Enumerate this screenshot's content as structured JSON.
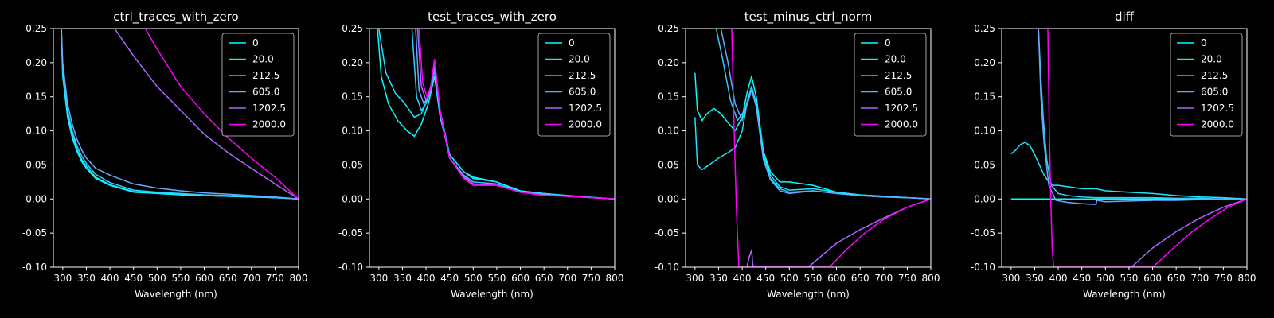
{
  "legend_labels": [
    "0",
    "20.0",
    "212.5",
    "605.0",
    "1202.5",
    "2000.0"
  ],
  "series_colors": [
    "#00ffff",
    "#1ae5ff",
    "#33ccff",
    "#66aaff",
    "#aa66ff",
    "#ff00ff"
  ],
  "chart_data": [
    {
      "type": "line",
      "title": "ctrl_traces_with_zero",
      "xlabel": "Wavelength (nm)",
      "ylabel": "",
      "xlim": [
        280,
        800
      ],
      "ylim": [
        -0.1,
        0.25
      ],
      "xticks": [
        300,
        350,
        400,
        450,
        500,
        550,
        600,
        650,
        700,
        750,
        800
      ],
      "yticks": [
        -0.1,
        -0.05,
        0.0,
        0.05,
        0.1,
        0.15,
        0.2,
        0.25
      ],
      "legend": "top-right",
      "series": [
        {
          "name": "0",
          "x": [
            297,
            300,
            310,
            320,
            330,
            340,
            350,
            370,
            400,
            450,
            500,
            550,
            600,
            650,
            700,
            750,
            800
          ],
          "y": [
            0.24,
            0.18,
            0.12,
            0.09,
            0.07,
            0.055,
            0.045,
            0.03,
            0.02,
            0.01,
            0.008,
            0.006,
            0.005,
            0.004,
            0.003,
            0.002,
            0.0
          ]
        },
        {
          "name": "20.0",
          "x": [
            297,
            300,
            310,
            320,
            330,
            340,
            350,
            370,
            400,
            450,
            500,
            550,
            600,
            650,
            700,
            750,
            800
          ],
          "y": [
            0.245,
            0.185,
            0.125,
            0.095,
            0.073,
            0.058,
            0.048,
            0.032,
            0.021,
            0.011,
            0.009,
            0.007,
            0.005,
            0.004,
            0.003,
            0.002,
            0.0
          ]
        },
        {
          "name": "212.5",
          "x": [
            297,
            300,
            310,
            320,
            330,
            340,
            350,
            370,
            400,
            450,
            500,
            550,
            600,
            650,
            700,
            750,
            800
          ],
          "y": [
            0.25,
            0.19,
            0.13,
            0.1,
            0.078,
            0.063,
            0.052,
            0.036,
            0.024,
            0.013,
            0.01,
            0.008,
            0.006,
            0.005,
            0.004,
            0.002,
            0.0
          ]
        },
        {
          "name": "605.0",
          "x": [
            297,
            300,
            310,
            320,
            330,
            340,
            350,
            370,
            400,
            450,
            500,
            550,
            600,
            650,
            700,
            750,
            800
          ],
          "y": [
            0.25,
            0.2,
            0.14,
            0.11,
            0.088,
            0.072,
            0.06,
            0.045,
            0.035,
            0.022,
            0.016,
            0.012,
            0.009,
            0.007,
            0.005,
            0.003,
            0.0
          ]
        },
        {
          "name": "1202.5",
          "x": [
            410,
            450,
            500,
            550,
            600,
            650,
            700,
            750,
            800
          ],
          "y": [
            0.25,
            0.21,
            0.165,
            0.13,
            0.095,
            0.068,
            0.045,
            0.022,
            0.0
          ]
        },
        {
          "name": "2000.0",
          "x": [
            475,
            500,
            550,
            600,
            650,
            700,
            750,
            800
          ],
          "y": [
            0.25,
            0.22,
            0.165,
            0.125,
            0.09,
            0.06,
            0.032,
            0.0
          ]
        }
      ]
    },
    {
      "type": "line",
      "title": "test_traces_with_zero",
      "xlabel": "Wavelength (nm)",
      "ylabel": "",
      "xlim": [
        280,
        800
      ],
      "ylim": [
        -0.1,
        0.25
      ],
      "xticks": [
        300,
        350,
        400,
        450,
        500,
        550,
        600,
        650,
        700,
        750,
        800
      ],
      "yticks": [
        -0.1,
        -0.05,
        0.0,
        0.05,
        0.1,
        0.15,
        0.2,
        0.25
      ],
      "legend": "top-right",
      "series": [
        {
          "name": "0",
          "x": [
            297,
            305,
            320,
            340,
            360,
            375,
            390,
            405,
            418,
            430,
            450,
            480,
            500,
            550,
            600,
            650,
            700,
            800
          ],
          "y": [
            0.25,
            0.18,
            0.14,
            0.115,
            0.1,
            0.092,
            0.11,
            0.14,
            0.18,
            0.12,
            0.065,
            0.04,
            0.032,
            0.025,
            0.012,
            0.008,
            0.005,
            0.0
          ]
        },
        {
          "name": "20.0",
          "x": [
            300,
            315,
            335,
            355,
            375,
            390,
            405,
            418,
            430,
            450,
            480,
            500,
            550,
            600,
            650,
            700,
            800
          ],
          "y": [
            0.25,
            0.185,
            0.155,
            0.14,
            0.12,
            0.125,
            0.15,
            0.19,
            0.13,
            0.065,
            0.04,
            0.03,
            0.025,
            0.01,
            0.008,
            0.005,
            0.0
          ]
        },
        {
          "name": "212.5",
          "x": [
            370,
            380,
            390,
            400,
            410,
            418,
            430,
            450,
            480,
            500,
            550,
            600,
            650,
            700,
            800
          ],
          "y": [
            0.25,
            0.15,
            0.13,
            0.14,
            0.16,
            0.19,
            0.125,
            0.06,
            0.035,
            0.025,
            0.022,
            0.01,
            0.007,
            0.004,
            0.0
          ]
        },
        {
          "name": "605.0",
          "x": [
            378,
            385,
            395,
            405,
            418,
            430,
            450,
            480,
            500,
            550,
            600,
            650,
            700,
            800
          ],
          "y": [
            0.25,
            0.16,
            0.14,
            0.15,
            0.19,
            0.125,
            0.06,
            0.033,
            0.022,
            0.02,
            0.01,
            0.007,
            0.004,
            0.0
          ]
        },
        {
          "name": "1202.5",
          "x": [
            382,
            390,
            400,
            410,
            418,
            430,
            450,
            480,
            500,
            550,
            600,
            650,
            700,
            800
          ],
          "y": [
            0.25,
            0.165,
            0.145,
            0.16,
            0.195,
            0.125,
            0.06,
            0.032,
            0.022,
            0.02,
            0.01,
            0.006,
            0.004,
            0.0
          ]
        },
        {
          "name": "2000.0",
          "x": [
            385,
            393,
            402,
            410,
            418,
            430,
            450,
            480,
            500,
            550,
            600,
            650,
            700,
            800
          ],
          "y": [
            0.25,
            0.17,
            0.15,
            0.165,
            0.205,
            0.13,
            0.06,
            0.03,
            0.02,
            0.02,
            0.01,
            0.005,
            0.004,
            0.0
          ]
        }
      ]
    },
    {
      "type": "line",
      "title": "test_minus_ctrl_norm",
      "xlabel": "Wavelength (nm)",
      "ylabel": "",
      "xlim": [
        280,
        800
      ],
      "ylim": [
        -0.1,
        0.25
      ],
      "xticks": [
        300,
        350,
        400,
        450,
        500,
        550,
        600,
        650,
        700,
        750,
        800
      ],
      "yticks": [
        -0.1,
        -0.05,
        0.0,
        0.05,
        0.1,
        0.15,
        0.2,
        0.25
      ],
      "legend": "top-right",
      "series": [
        {
          "name": "0",
          "x": [
            300,
            305,
            315,
            325,
            340,
            355,
            370,
            385,
            400,
            410,
            420,
            430,
            445,
            460,
            480,
            500,
            550,
            600,
            650,
            700,
            750,
            800
          ],
          "y": [
            0.185,
            0.13,
            0.115,
            0.125,
            0.133,
            0.125,
            0.112,
            0.1,
            0.12,
            0.155,
            0.18,
            0.15,
            0.07,
            0.04,
            0.025,
            0.025,
            0.02,
            0.01,
            0.006,
            0.004,
            0.002,
            0.0
          ]
        },
        {
          "name": "20.0",
          "x": [
            300,
            305,
            315,
            330,
            350,
            370,
            385,
            400,
            410,
            420,
            430,
            445,
            460,
            480,
            500,
            550,
            600,
            650,
            700,
            750,
            800
          ],
          "y": [
            0.12,
            0.05,
            0.043,
            0.05,
            0.06,
            0.068,
            0.075,
            0.1,
            0.14,
            0.165,
            0.14,
            0.065,
            0.035,
            0.018,
            0.013,
            0.015,
            0.01,
            0.006,
            0.004,
            0.002,
            0.0
          ]
        },
        {
          "name": "212.5",
          "x": [
            345,
            360,
            375,
            390,
            405,
            420,
            430,
            445,
            460,
            480,
            500,
            550,
            600,
            650,
            700,
            750,
            800
          ],
          "y": [
            0.25,
            0.2,
            0.145,
            0.115,
            0.13,
            0.165,
            0.14,
            0.06,
            0.03,
            0.015,
            0.01,
            0.012,
            0.008,
            0.005,
            0.003,
            0.002,
            0.0
          ]
        },
        {
          "name": "605.0",
          "x": [
            355,
            370,
            385,
            400,
            420,
            430,
            445,
            460,
            480,
            500,
            550,
            600,
            650,
            700,
            750,
            800
          ],
          "y": [
            0.25,
            0.2,
            0.14,
            0.115,
            0.16,
            0.135,
            0.058,
            0.028,
            0.012,
            0.008,
            0.012,
            0.008,
            0.005,
            0.003,
            0.002,
            0.0
          ]
        },
        {
          "name": "1202.5",
          "x": [
            410,
            415,
            420,
            423,
            540,
            600,
            650,
            700,
            750,
            800
          ],
          "y": [
            -0.1,
            -0.085,
            -0.075,
            -0.1,
            -0.1,
            -0.065,
            -0.045,
            -0.028,
            -0.012,
            0.0
          ]
        },
        {
          "name": "2000.0",
          "x": [
            378,
            383,
            388,
            393,
            585,
            620,
            660,
            700,
            750,
            800
          ],
          "y": [
            0.25,
            0.1,
            -0.02,
            -0.1,
            -0.1,
            -0.075,
            -0.05,
            -0.03,
            -0.012,
            0.0
          ]
        }
      ]
    },
    {
      "type": "line",
      "title": "diff",
      "xlabel": "Wavelength (nm)",
      "ylabel": "",
      "xlim": [
        280,
        800
      ],
      "ylim": [
        -0.1,
        0.25
      ],
      "xticks": [
        300,
        350,
        400,
        450,
        500,
        550,
        600,
        650,
        700,
        750,
        800
      ],
      "yticks": [
        -0.1,
        -0.05,
        0.0,
        0.05,
        0.1,
        0.15,
        0.2,
        0.25
      ],
      "legend": "top-right",
      "series": [
        {
          "name": "0",
          "x": [
            300,
            800
          ],
          "y": [
            0.0,
            0.0
          ]
        },
        {
          "name": "20.0",
          "x": [
            300,
            310,
            320,
            330,
            340,
            350,
            360,
            370,
            380,
            390,
            400,
            420,
            450,
            480,
            500,
            550,
            600,
            650,
            700,
            750,
            800
          ],
          "y": [
            0.066,
            0.072,
            0.08,
            0.083,
            0.078,
            0.065,
            0.05,
            0.035,
            0.025,
            0.02,
            0.02,
            0.018,
            0.015,
            0.015,
            0.012,
            0.01,
            0.008,
            0.005,
            0.003,
            0.002,
            0.0
          ]
        },
        {
          "name": "212.5",
          "x": [
            358,
            362,
            368,
            375,
            385,
            400,
            420,
            450,
            480,
            500,
            550,
            600,
            650,
            700,
            750,
            800
          ],
          "y": [
            0.25,
            0.19,
            0.12,
            0.06,
            0.02,
            0.008,
            0.005,
            0.003,
            0.002,
            0.002,
            0.002,
            0.002,
            0.001,
            0.001,
            0.0,
            0.0
          ]
        },
        {
          "name": "605.0",
          "x": [
            358,
            363,
            370,
            380,
            395,
            420,
            450,
            480,
            482,
            500,
            550,
            600,
            650,
            700,
            750,
            800
          ],
          "y": [
            0.25,
            0.15,
            0.08,
            0.02,
            -0.002,
            -0.005,
            -0.007,
            -0.008,
            -0.002,
            -0.004,
            -0.003,
            -0.002,
            -0.002,
            -0.001,
            -0.001,
            0.0
          ]
        },
        {
          "name": "1202.5",
          "x": [
            555,
            600,
            650,
            700,
            750,
            800
          ],
          "y": [
            -0.1,
            -0.072,
            -0.048,
            -0.028,
            -0.012,
            0.0
          ]
        },
        {
          "name": "2000.0",
          "x": [
            378,
            381,
            384,
            387,
            390,
            600,
            640,
            680,
            720,
            760,
            800
          ],
          "y": [
            0.25,
            0.1,
            0.0,
            -0.07,
            -0.1,
            -0.1,
            -0.075,
            -0.05,
            -0.03,
            -0.012,
            0.0
          ]
        }
      ]
    }
  ]
}
